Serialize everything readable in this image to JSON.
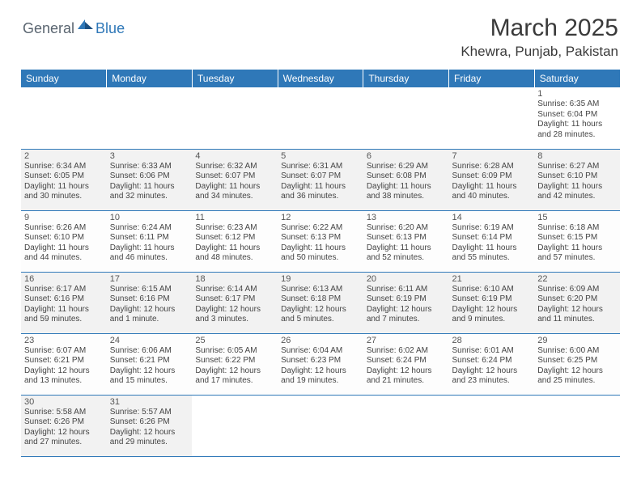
{
  "logo": {
    "general": "General",
    "blue": "Blue"
  },
  "title": "March 2025",
  "location": "Khewra, Punjab, Pakistan",
  "colors": {
    "header_bg": "#2f78b8",
    "header_text": "#ffffff",
    "border": "#2f78b8",
    "logo_gray": "#5a6570",
    "logo_blue": "#2f78b8"
  },
  "weekdays": [
    "Sunday",
    "Monday",
    "Tuesday",
    "Wednesday",
    "Thursday",
    "Friday",
    "Saturday"
  ],
  "weeks": [
    [
      null,
      null,
      null,
      null,
      null,
      null,
      {
        "n": "1",
        "sr": "Sunrise: 6:35 AM",
        "ss": "Sunset: 6:04 PM",
        "dl": "Daylight: 11 hours and 28 minutes."
      }
    ],
    [
      {
        "n": "2",
        "sr": "Sunrise: 6:34 AM",
        "ss": "Sunset: 6:05 PM",
        "dl": "Daylight: 11 hours and 30 minutes."
      },
      {
        "n": "3",
        "sr": "Sunrise: 6:33 AM",
        "ss": "Sunset: 6:06 PM",
        "dl": "Daylight: 11 hours and 32 minutes."
      },
      {
        "n": "4",
        "sr": "Sunrise: 6:32 AM",
        "ss": "Sunset: 6:07 PM",
        "dl": "Daylight: 11 hours and 34 minutes."
      },
      {
        "n": "5",
        "sr": "Sunrise: 6:31 AM",
        "ss": "Sunset: 6:07 PM",
        "dl": "Daylight: 11 hours and 36 minutes."
      },
      {
        "n": "6",
        "sr": "Sunrise: 6:29 AM",
        "ss": "Sunset: 6:08 PM",
        "dl": "Daylight: 11 hours and 38 minutes."
      },
      {
        "n": "7",
        "sr": "Sunrise: 6:28 AM",
        "ss": "Sunset: 6:09 PM",
        "dl": "Daylight: 11 hours and 40 minutes."
      },
      {
        "n": "8",
        "sr": "Sunrise: 6:27 AM",
        "ss": "Sunset: 6:10 PM",
        "dl": "Daylight: 11 hours and 42 minutes."
      }
    ],
    [
      {
        "n": "9",
        "sr": "Sunrise: 6:26 AM",
        "ss": "Sunset: 6:10 PM",
        "dl": "Daylight: 11 hours and 44 minutes."
      },
      {
        "n": "10",
        "sr": "Sunrise: 6:24 AM",
        "ss": "Sunset: 6:11 PM",
        "dl": "Daylight: 11 hours and 46 minutes."
      },
      {
        "n": "11",
        "sr": "Sunrise: 6:23 AM",
        "ss": "Sunset: 6:12 PM",
        "dl": "Daylight: 11 hours and 48 minutes."
      },
      {
        "n": "12",
        "sr": "Sunrise: 6:22 AM",
        "ss": "Sunset: 6:13 PM",
        "dl": "Daylight: 11 hours and 50 minutes."
      },
      {
        "n": "13",
        "sr": "Sunrise: 6:20 AM",
        "ss": "Sunset: 6:13 PM",
        "dl": "Daylight: 11 hours and 52 minutes."
      },
      {
        "n": "14",
        "sr": "Sunrise: 6:19 AM",
        "ss": "Sunset: 6:14 PM",
        "dl": "Daylight: 11 hours and 55 minutes."
      },
      {
        "n": "15",
        "sr": "Sunrise: 6:18 AM",
        "ss": "Sunset: 6:15 PM",
        "dl": "Daylight: 11 hours and 57 minutes."
      }
    ],
    [
      {
        "n": "16",
        "sr": "Sunrise: 6:17 AM",
        "ss": "Sunset: 6:16 PM",
        "dl": "Daylight: 11 hours and 59 minutes."
      },
      {
        "n": "17",
        "sr": "Sunrise: 6:15 AM",
        "ss": "Sunset: 6:16 PM",
        "dl": "Daylight: 12 hours and 1 minute."
      },
      {
        "n": "18",
        "sr": "Sunrise: 6:14 AM",
        "ss": "Sunset: 6:17 PM",
        "dl": "Daylight: 12 hours and 3 minutes."
      },
      {
        "n": "19",
        "sr": "Sunrise: 6:13 AM",
        "ss": "Sunset: 6:18 PM",
        "dl": "Daylight: 12 hours and 5 minutes."
      },
      {
        "n": "20",
        "sr": "Sunrise: 6:11 AM",
        "ss": "Sunset: 6:19 PM",
        "dl": "Daylight: 12 hours and 7 minutes."
      },
      {
        "n": "21",
        "sr": "Sunrise: 6:10 AM",
        "ss": "Sunset: 6:19 PM",
        "dl": "Daylight: 12 hours and 9 minutes."
      },
      {
        "n": "22",
        "sr": "Sunrise: 6:09 AM",
        "ss": "Sunset: 6:20 PM",
        "dl": "Daylight: 12 hours and 11 minutes."
      }
    ],
    [
      {
        "n": "23",
        "sr": "Sunrise: 6:07 AM",
        "ss": "Sunset: 6:21 PM",
        "dl": "Daylight: 12 hours and 13 minutes."
      },
      {
        "n": "24",
        "sr": "Sunrise: 6:06 AM",
        "ss": "Sunset: 6:21 PM",
        "dl": "Daylight: 12 hours and 15 minutes."
      },
      {
        "n": "25",
        "sr": "Sunrise: 6:05 AM",
        "ss": "Sunset: 6:22 PM",
        "dl": "Daylight: 12 hours and 17 minutes."
      },
      {
        "n": "26",
        "sr": "Sunrise: 6:04 AM",
        "ss": "Sunset: 6:23 PM",
        "dl": "Daylight: 12 hours and 19 minutes."
      },
      {
        "n": "27",
        "sr": "Sunrise: 6:02 AM",
        "ss": "Sunset: 6:24 PM",
        "dl": "Daylight: 12 hours and 21 minutes."
      },
      {
        "n": "28",
        "sr": "Sunrise: 6:01 AM",
        "ss": "Sunset: 6:24 PM",
        "dl": "Daylight: 12 hours and 23 minutes."
      },
      {
        "n": "29",
        "sr": "Sunrise: 6:00 AM",
        "ss": "Sunset: 6:25 PM",
        "dl": "Daylight: 12 hours and 25 minutes."
      }
    ],
    [
      {
        "n": "30",
        "sr": "Sunrise: 5:58 AM",
        "ss": "Sunset: 6:26 PM",
        "dl": "Daylight: 12 hours and 27 minutes."
      },
      {
        "n": "31",
        "sr": "Sunrise: 5:57 AM",
        "ss": "Sunset: 6:26 PM",
        "dl": "Daylight: 12 hours and 29 minutes."
      },
      null,
      null,
      null,
      null,
      null
    ]
  ]
}
